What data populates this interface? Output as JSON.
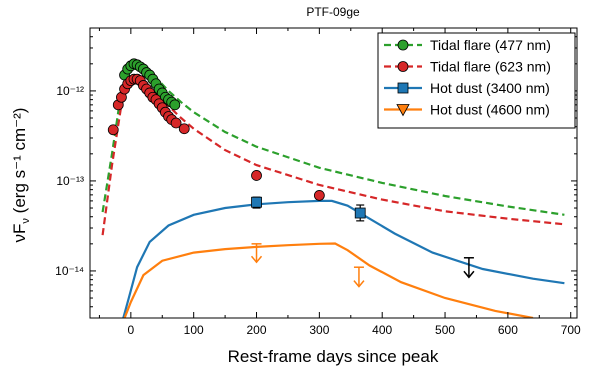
{
  "chart_data": {
    "type": "scatter",
    "title": "PTF-09ge",
    "xlabel": "Rest-frame days since peak",
    "ylabel_main": "νF",
    "ylabel_sub": "ν",
    "ylabel_units": "(erg s⁻¹ cm⁻²)",
    "xlim": [
      -65,
      710
    ],
    "ylim": [
      3e-15,
      5e-12
    ],
    "yscale": "log",
    "xticks": [
      0,
      100,
      200,
      300,
      400,
      500,
      600,
      700
    ],
    "xtick_labels": [
      "0",
      "100",
      "200",
      "300",
      "400",
      "500",
      "600",
      "700"
    ],
    "yticks": [
      1e-14,
      1e-13,
      1e-12
    ],
    "ytick_labels": [
      "10⁻¹⁴",
      "10⁻¹³",
      "10⁻¹²"
    ],
    "legend_position": "top-right",
    "series": [
      {
        "name": "Tidal flare (477 nm)",
        "color": "#2ca02c",
        "marker": "circle",
        "line_style": "dashed",
        "model": [
          [
            -45,
            4.5e-14
          ],
          [
            -30,
            2e-13
          ],
          [
            -15,
            1e-12
          ],
          [
            0,
            1.95e-12
          ],
          [
            20,
            1.8e-12
          ],
          [
            40,
            1.4e-12
          ],
          [
            60,
            1e-12
          ],
          [
            80,
            7.5e-13
          ],
          [
            100,
            5.8e-13
          ],
          [
            150,
            3.5e-13
          ],
          [
            200,
            2.4e-13
          ],
          [
            300,
            1.4e-13
          ],
          [
            400,
            9.5e-14
          ],
          [
            500,
            6.8e-14
          ],
          [
            600,
            5.2e-14
          ],
          [
            690,
            4.2e-14
          ]
        ],
        "points": [
          [
            -10,
            1.5e-12
          ],
          [
            -5,
            1.75e-12
          ],
          [
            0,
            1.9e-12
          ],
          [
            5,
            2e-12
          ],
          [
            10,
            1.95e-12
          ],
          [
            15,
            1.85e-12
          ],
          [
            20,
            1.75e-12
          ],
          [
            25,
            1.6e-12
          ],
          [
            30,
            1.5e-12
          ],
          [
            35,
            1.35e-12
          ],
          [
            40,
            1.2e-12
          ],
          [
            45,
            1.05e-12
          ],
          [
            50,
            9.5e-13
          ],
          [
            55,
            8.5e-13
          ],
          [
            60,
            8e-13
          ],
          [
            65,
            7.5e-13
          ],
          [
            70,
            7e-13
          ]
        ]
      },
      {
        "name": "Tidal flare (623 nm)",
        "color": "#d62728",
        "marker": "circle",
        "line_style": "dashed",
        "model": [
          [
            -45,
            2.5e-14
          ],
          [
            -30,
            1.5e-13
          ],
          [
            -15,
            7e-13
          ],
          [
            0,
            1.3e-12
          ],
          [
            20,
            1.2e-12
          ],
          [
            40,
            9.5e-13
          ],
          [
            60,
            6.8e-13
          ],
          [
            80,
            5e-13
          ],
          [
            100,
            3.8e-13
          ],
          [
            150,
            2.2e-13
          ],
          [
            200,
            1.5e-13
          ],
          [
            300,
            9e-14
          ],
          [
            400,
            6.2e-14
          ],
          [
            500,
            4.6e-14
          ],
          [
            600,
            3.8e-14
          ],
          [
            690,
            3.3e-14
          ]
        ],
        "points": [
          [
            -28,
            3.7e-13
          ],
          [
            -20,
            7e-13
          ],
          [
            -15,
            8.5e-13
          ],
          [
            -10,
            1.05e-12
          ],
          [
            -5,
            1.2e-12
          ],
          [
            0,
            1.3e-12
          ],
          [
            5,
            1.35e-12
          ],
          [
            10,
            1.35e-12
          ],
          [
            15,
            1.3e-12
          ],
          [
            20,
            1.15e-12
          ],
          [
            25,
            1.05e-12
          ],
          [
            30,
            9.5e-13
          ],
          [
            35,
            8.5e-13
          ],
          [
            40,
            8e-13
          ],
          [
            45,
            7.2e-13
          ],
          [
            50,
            6.5e-13
          ],
          [
            55,
            5.8e-13
          ],
          [
            60,
            5.2e-13
          ],
          [
            65,
            4.8e-13
          ],
          [
            72,
            4.4e-13
          ],
          [
            85,
            3.8e-13
          ],
          [
            200,
            1.15e-13
          ],
          [
            300,
            6.9e-14
          ]
        ]
      },
      {
        "name": "Hot dust (3400 nm)",
        "color": "#1f77b4",
        "marker": "square",
        "line_style": "solid",
        "model": [
          [
            -12,
            3e-15
          ],
          [
            -5,
            4.5e-15
          ],
          [
            10,
            1.1e-14
          ],
          [
            30,
            2.1e-14
          ],
          [
            60,
            3.2e-14
          ],
          [
            100,
            4.2e-14
          ],
          [
            150,
            5e-14
          ],
          [
            200,
            5.5e-14
          ],
          [
            250,
            5.8e-14
          ],
          [
            300,
            6e-14
          ],
          [
            320,
            6e-14
          ],
          [
            345,
            5.3e-14
          ],
          [
            380,
            3.8e-14
          ],
          [
            420,
            2.6e-14
          ],
          [
            480,
            1.6e-14
          ],
          [
            560,
            1.05e-14
          ],
          [
            640,
            8.2e-15
          ],
          [
            690,
            7.3e-15
          ]
        ],
        "points": [
          [
            200,
            5.8e-14,
            6.6e-14,
            5e-14
          ],
          [
            365,
            4.4e-14,
            5.4e-14,
            3.6e-14
          ]
        ]
      },
      {
        "name": "Hot dust (4600 nm)",
        "color": "#ff7f0e",
        "marker": "triangle-down",
        "line_style": "solid",
        "model": [
          [
            -10,
            3e-15
          ],
          [
            0,
            4.5e-15
          ],
          [
            20,
            9e-15
          ],
          [
            50,
            1.3e-14
          ],
          [
            100,
            1.6e-14
          ],
          [
            150,
            1.75e-14
          ],
          [
            200,
            1.85e-14
          ],
          [
            250,
            1.93e-14
          ],
          [
            300,
            2e-14
          ],
          [
            325,
            2.02e-14
          ],
          [
            345,
            1.7e-14
          ],
          [
            380,
            1.15e-14
          ],
          [
            430,
            7.5e-15
          ],
          [
            500,
            5e-15
          ],
          [
            580,
            3.6e-15
          ],
          [
            640,
            3e-15
          ]
        ],
        "points": []
      }
    ],
    "upper_limits": [
      {
        "series": "Hot dust (4600 nm)",
        "x": 200,
        "y": 2e-14,
        "y_arrow_end": 1.25e-14,
        "color": "#ff7f0e"
      },
      {
        "series": "Hot dust (4600 nm)",
        "x": 363,
        "y": 1.1e-14,
        "y_arrow_end": 6.7e-15,
        "color": "#ff7f0e"
      },
      {
        "series": "Hot dust (3400 nm)",
        "x": 538,
        "y": 1.4e-14,
        "y_arrow_end": 8.5e-15,
        "color": "#1f77b4"
      }
    ]
  }
}
